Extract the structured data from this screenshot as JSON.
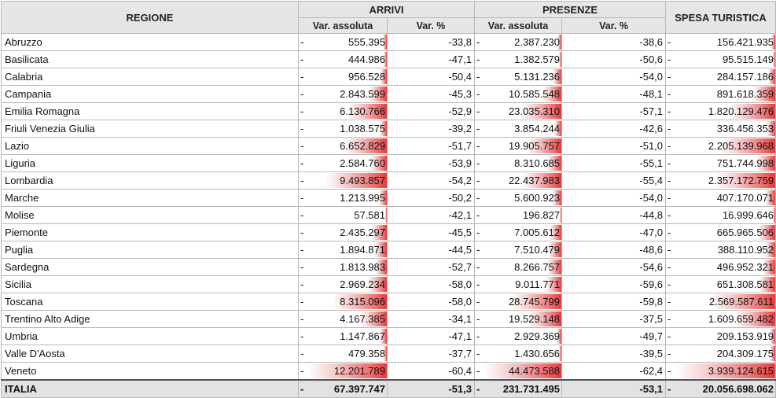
{
  "header": {
    "regione": "REGIONE",
    "arrivi": "ARRIVI",
    "presenze": "PRESENZE",
    "spesa": "SPESA TURISTICA",
    "var_assoluta": "Var. assoluta",
    "var_pct": "Var. %"
  },
  "dash": "-",
  "rows": [
    {
      "name": "Abruzzo",
      "arr_abs": "555.395",
      "arr_abs_n": 555395,
      "arr_pct": "-33,8",
      "pres_abs": "2.387.230",
      "pres_abs_n": 2387230,
      "pres_pct": "-38,6",
      "spesa": "156.421.935",
      "spesa_n": 156421935
    },
    {
      "name": "Basilicata",
      "arr_abs": "444.986",
      "arr_abs_n": 444986,
      "arr_pct": "-47,1",
      "pres_abs": "1.382.579",
      "pres_abs_n": 1382579,
      "pres_pct": "-50,6",
      "spesa": "95.515.149",
      "spesa_n": 95515149
    },
    {
      "name": "Calabria",
      "arr_abs": "956.528",
      "arr_abs_n": 956528,
      "arr_pct": "-50,4",
      "pres_abs": "5.131.236",
      "pres_abs_n": 5131236,
      "pres_pct": "-54,0",
      "spesa": "284.157.186",
      "spesa_n": 284157186
    },
    {
      "name": "Campania",
      "arr_abs": "2.843.599",
      "arr_abs_n": 2843599,
      "arr_pct": "-45,3",
      "pres_abs": "10.585.548",
      "pres_abs_n": 10585548,
      "pres_pct": "-48,1",
      "spesa": "891.618.359",
      "spesa_n": 891618359
    },
    {
      "name": "Emilia Romagna",
      "arr_abs": "6.130.766",
      "arr_abs_n": 6130766,
      "arr_pct": "-52,9",
      "pres_abs": "23.035.310",
      "pres_abs_n": 23035310,
      "pres_pct": "-57,1",
      "spesa": "1.820.129.476",
      "spesa_n": 1820129476
    },
    {
      "name": "Friuli Venezia Giulia",
      "arr_abs": "1.038.575",
      "arr_abs_n": 1038575,
      "arr_pct": "-39,2",
      "pres_abs": "3.854.244",
      "pres_abs_n": 3854244,
      "pres_pct": "-42,6",
      "spesa": "336.456.353",
      "spesa_n": 336456353
    },
    {
      "name": "Lazio",
      "arr_abs": "6.652.829",
      "arr_abs_n": 6652829,
      "arr_pct": "-51,7",
      "pres_abs": "19.905.757",
      "pres_abs_n": 19905757,
      "pres_pct": "-51,0",
      "spesa": "2.205.139.968",
      "spesa_n": 2205139968
    },
    {
      "name": "Liguria",
      "arr_abs": "2.584.760",
      "arr_abs_n": 2584760,
      "arr_pct": "-53,9",
      "pres_abs": "8.310.685",
      "pres_abs_n": 8310685,
      "pres_pct": "-55,1",
      "spesa": "751.744.998",
      "spesa_n": 751744998
    },
    {
      "name": "Lombardia",
      "arr_abs": "9.493.857",
      "arr_abs_n": 9493857,
      "arr_pct": "-54,2",
      "pres_abs": "22.437.983",
      "pres_abs_n": 22437983,
      "pres_pct": "-55,4",
      "spesa": "2.357.172.759",
      "spesa_n": 2357172759
    },
    {
      "name": "Marche",
      "arr_abs": "1.213.995",
      "arr_abs_n": 1213995,
      "arr_pct": "-50,2",
      "pres_abs": "5.600.923",
      "pres_abs_n": 5600923,
      "pres_pct": "-54,0",
      "spesa": "407.170.071",
      "spesa_n": 407170071
    },
    {
      "name": "Molise",
      "arr_abs": "57.581",
      "arr_abs_n": 57581,
      "arr_pct": "-42,1",
      "pres_abs": "196.827",
      "pres_abs_n": 196827,
      "pres_pct": "-44,8",
      "spesa": "16.999.646",
      "spesa_n": 16999646
    },
    {
      "name": "Piemonte",
      "arr_abs": "2.435.297",
      "arr_abs_n": 2435297,
      "arr_pct": "-45,5",
      "pres_abs": "7.005.612",
      "pres_abs_n": 7005612,
      "pres_pct": "-47,0",
      "spesa": "665.965.506",
      "spesa_n": 665965506
    },
    {
      "name": "Puglia",
      "arr_abs": "1.894.871",
      "arr_abs_n": 1894871,
      "arr_pct": "-44,5",
      "pres_abs": "7.510.479",
      "pres_abs_n": 7510479,
      "pres_pct": "-48,6",
      "spesa": "388.110.952",
      "spesa_n": 388110952
    },
    {
      "name": "Sardegna",
      "arr_abs": "1.813.983",
      "arr_abs_n": 1813983,
      "arr_pct": "-52,7",
      "pres_abs": "8.266.757",
      "pres_abs_n": 8266757,
      "pres_pct": "-54,6",
      "spesa": "496.952.321",
      "spesa_n": 496952321
    },
    {
      "name": "Sicilia",
      "arr_abs": "2.969.234",
      "arr_abs_n": 2969234,
      "arr_pct": "-58,0",
      "pres_abs": "9.011.771",
      "pres_abs_n": 9011771,
      "pres_pct": "-59,6",
      "spesa": "651.308.581",
      "spesa_n": 651308581
    },
    {
      "name": "Toscana",
      "arr_abs": "8.315.096",
      "arr_abs_n": 8315096,
      "arr_pct": "-58,0",
      "pres_abs": "28.745.799",
      "pres_abs_n": 28745799,
      "pres_pct": "-59,8",
      "spesa": "2.569.587.611",
      "spesa_n": 2569587611
    },
    {
      "name": "Trentino Alto Adige",
      "arr_abs": "4.167.385",
      "arr_abs_n": 4167385,
      "arr_pct": "-34,1",
      "pres_abs": "19.529.148",
      "pres_abs_n": 19529148,
      "pres_pct": "-37,5",
      "spesa": "1.609.659.482",
      "spesa_n": 1609659482
    },
    {
      "name": "Umbria",
      "arr_abs": "1.147.867",
      "arr_abs_n": 1147867,
      "arr_pct": "-47,1",
      "pres_abs": "2.929.369",
      "pres_abs_n": 2929369,
      "pres_pct": "-49,7",
      "spesa": "209.153.919",
      "spesa_n": 209153919
    },
    {
      "name": "Valle D'Aosta",
      "arr_abs": "479.358",
      "arr_abs_n": 479358,
      "arr_pct": "-37,7",
      "pres_abs": "1.430.656",
      "pres_abs_n": 1430656,
      "pres_pct": "-39,5",
      "spesa": "204.309.175",
      "spesa_n": 204309175
    },
    {
      "name": "Veneto",
      "arr_abs": "12.201.789",
      "arr_abs_n": 12201789,
      "arr_pct": "-60,4",
      "pres_abs": "44.473.588",
      "pres_abs_n": 44473588,
      "pres_pct": "-62,4",
      "spesa": "3.939.124.615",
      "spesa_n": 3939124615
    }
  ],
  "total": {
    "name": "ITALIA",
    "arr_abs": "67.397.747",
    "arr_pct": "-51,3",
    "pres_abs": "231.731.495",
    "pres_pct": "-53,1",
    "spesa": "20.056.698.062"
  },
  "bar_color": "#e63a3a"
}
